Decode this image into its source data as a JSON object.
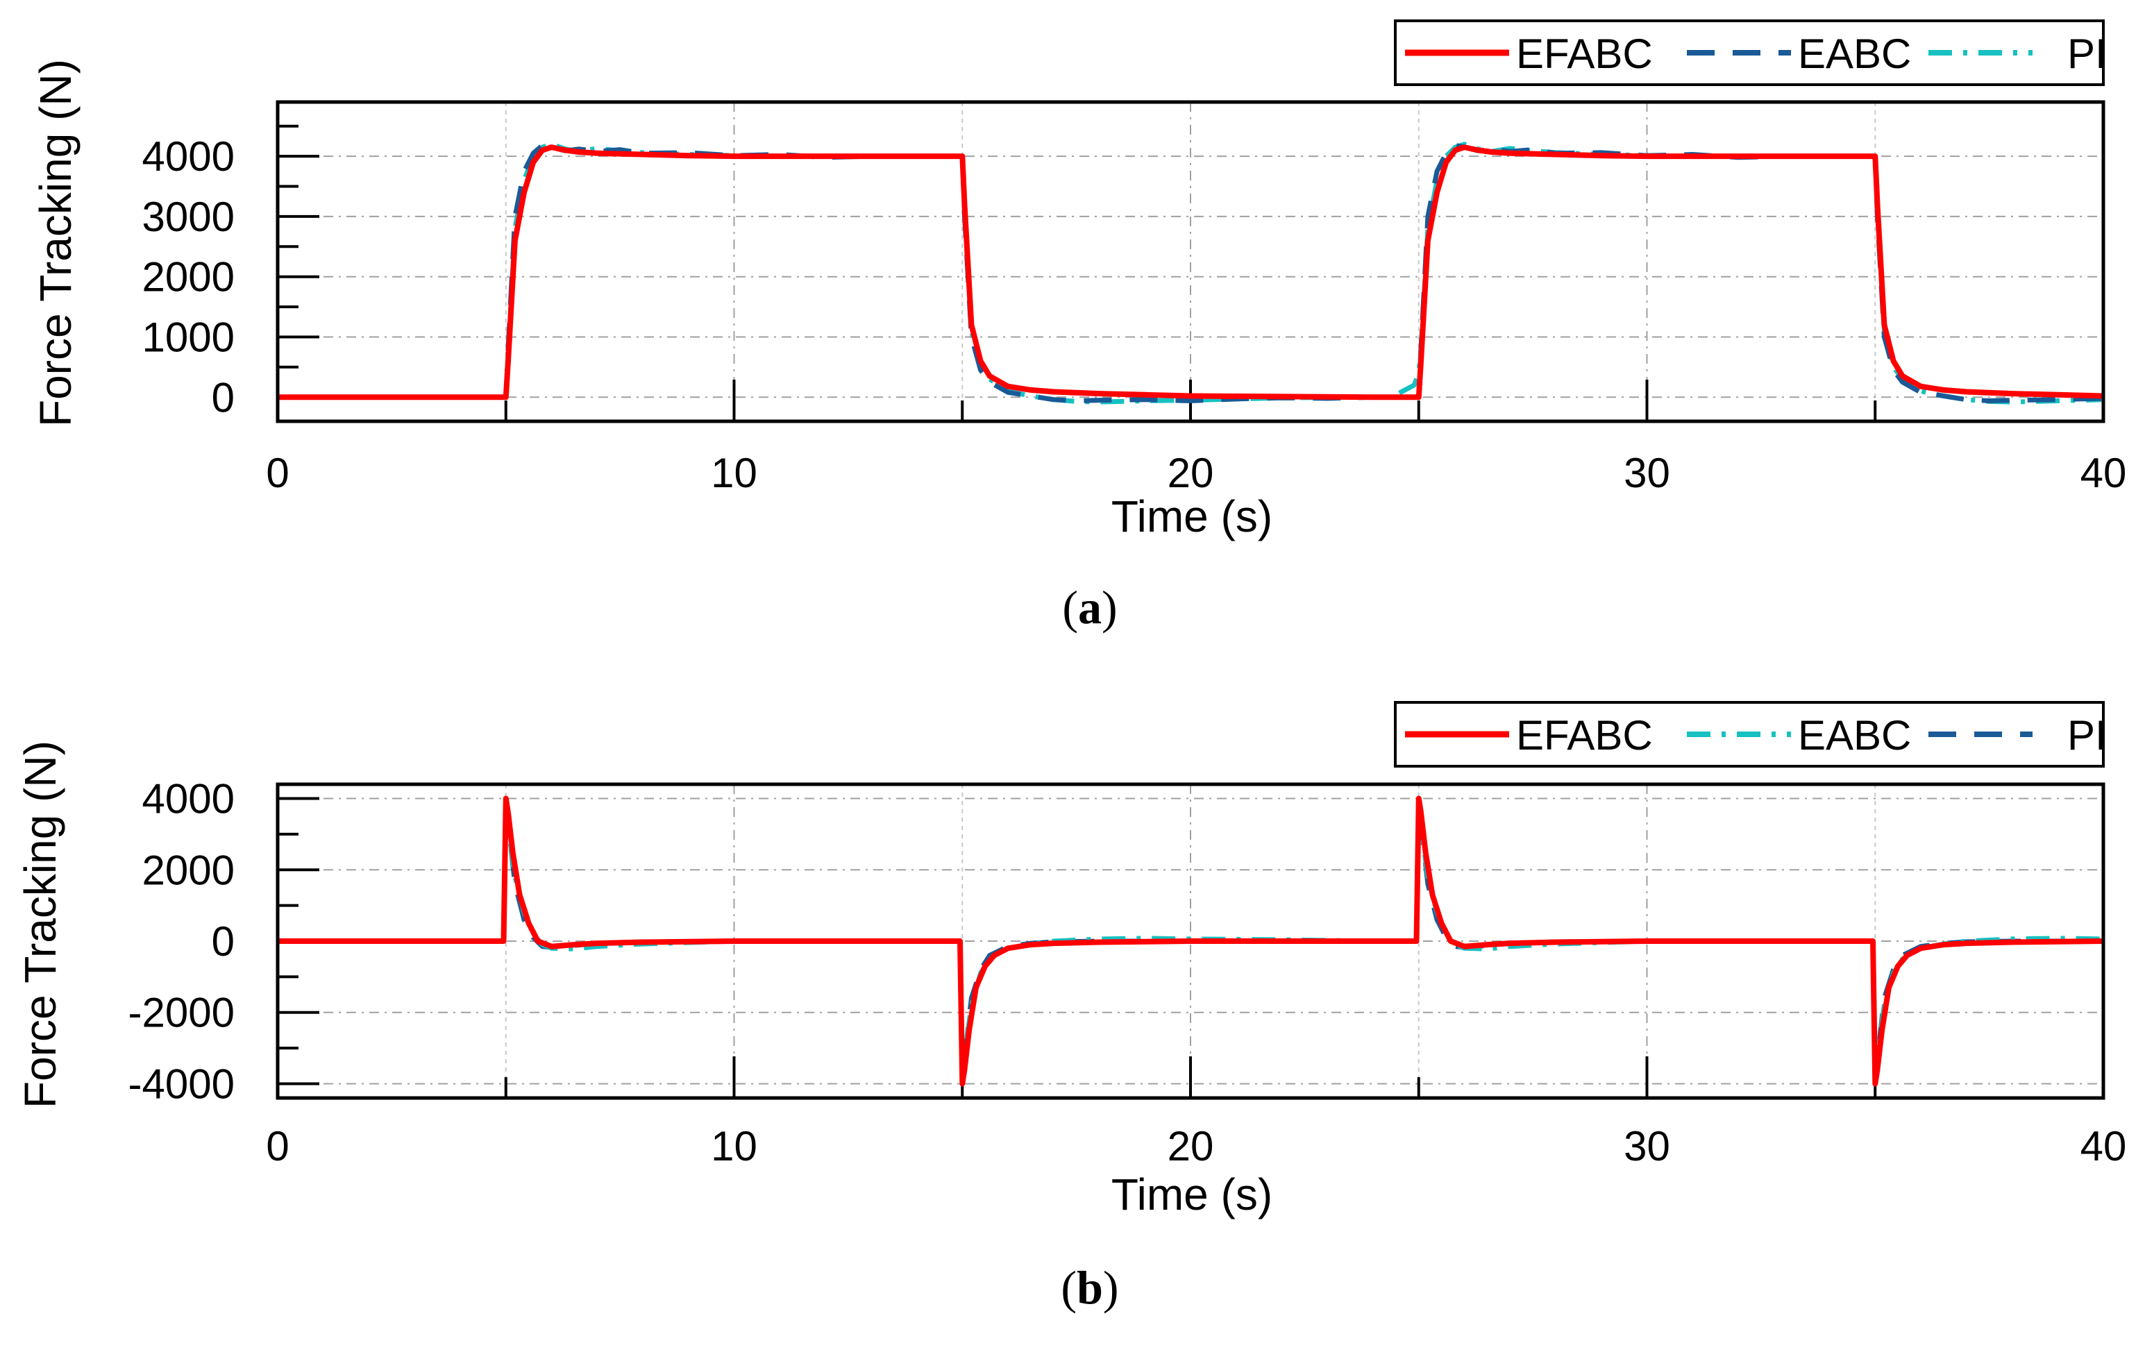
{
  "chart_data": [
    {
      "type": "line",
      "panel_label": "a",
      "xlabel": "Time (s)",
      "ylabel": "Force Tracking (N)",
      "xlim": [
        0,
        40
      ],
      "ylim": [
        -400,
        4900
      ],
      "xticks": [
        0,
        10,
        20,
        30,
        40
      ],
      "yticks": [
        0,
        1000,
        2000,
        3000,
        4000
      ],
      "xtick_labels": [
        "0",
        "10",
        "20",
        "30",
        "40"
      ],
      "ytick_labels": [
        "0",
        "1000",
        "2000",
        "3000",
        "4000"
      ],
      "grid": true,
      "legend_position": "top-right, above plot",
      "series": [
        {
          "name": "EFABC",
          "color": "#ff0000",
          "style": "solid",
          "x": [
            0,
            5,
            5.05,
            5.2,
            5.4,
            5.6,
            5.8,
            6.0,
            6.3,
            6.6,
            7,
            8,
            9,
            10,
            12,
            14,
            14.9,
            15.0,
            15.05,
            15.2,
            15.4,
            15.6,
            16,
            16.5,
            17,
            18,
            19,
            20,
            22,
            24,
            24.9,
            25.0,
            25.05,
            25.2,
            25.4,
            25.6,
            25.8,
            26.0,
            26.3,
            26.6,
            27,
            28,
            29,
            30,
            32,
            34,
            34.9,
            35.0,
            35.05,
            35.2,
            35.4,
            35.6,
            36,
            36.5,
            37,
            38,
            39,
            40
          ],
          "y": [
            0,
            0,
            600,
            2600,
            3400,
            3900,
            4100,
            4150,
            4100,
            4070,
            4050,
            4030,
            4010,
            4000,
            4000,
            4000,
            4000,
            4000,
            3200,
            1200,
            600,
            350,
            180,
            120,
            90,
            60,
            40,
            20,
            10,
            0,
            0,
            0,
            600,
            2600,
            3400,
            3900,
            4100,
            4150,
            4100,
            4070,
            4050,
            4030,
            4010,
            4000,
            4000,
            4000,
            4000,
            4000,
            3200,
            1200,
            600,
            350,
            180,
            120,
            90,
            60,
            40,
            20
          ]
        },
        {
          "name": "EABC",
          "color": "#1a5a96",
          "style": "dashed",
          "x": [
            0,
            5,
            5.05,
            5.2,
            5.4,
            5.6,
            5.8,
            6.0,
            6.3,
            6.6,
            7,
            7.5,
            8,
            9,
            10,
            11,
            12,
            13,
            14,
            14.9,
            15.0,
            15.05,
            15.2,
            15.4,
            15.6,
            16,
            16.5,
            17,
            17.5,
            18,
            19,
            20,
            21,
            22,
            23,
            24,
            24.9,
            25.0,
            25.05,
            25.2,
            25.4,
            25.6,
            25.8,
            26.0,
            26.3,
            26.6,
            27,
            27.5,
            28,
            29,
            30,
            31,
            32,
            33,
            34,
            34.9,
            35.0,
            35.05,
            35.2,
            35.4,
            35.6,
            36,
            36.5,
            37,
            37.5,
            38,
            39,
            40
          ],
          "y": [
            0,
            0,
            800,
            3000,
            3750,
            4050,
            4180,
            4150,
            4090,
            4120,
            4080,
            4110,
            4050,
            4060,
            4010,
            4030,
            3980,
            4000,
            4000,
            4000,
            4000,
            3000,
            1000,
            450,
            250,
            80,
            20,
            -40,
            -60,
            -50,
            -40,
            -60,
            -30,
            -10,
            -20,
            0,
            0,
            0,
            800,
            3000,
            3750,
            4050,
            4180,
            4150,
            4090,
            4120,
            4080,
            4110,
            4050,
            4060,
            4010,
            4030,
            3980,
            4000,
            4000,
            4000,
            4000,
            3000,
            1000,
            450,
            250,
            80,
            20,
            -40,
            -60,
            -50,
            -40,
            -20
          ]
        },
        {
          "name": "PI",
          "color": "#17c1c1",
          "style": "dashdot",
          "x": [
            0,
            5,
            5.05,
            5.2,
            5.4,
            5.6,
            5.8,
            6.0,
            6.3,
            6.6,
            7,
            7.5,
            8,
            9,
            10,
            12,
            14,
            14.9,
            15.0,
            15.05,
            15.2,
            15.4,
            15.6,
            16,
            16.5,
            17,
            17.5,
            18,
            18.5,
            19,
            20,
            21,
            22,
            23,
            24,
            24.4,
            24.9,
            25.0,
            25.05,
            25.2,
            25.4,
            25.6,
            25.8,
            26.0,
            26.3,
            26.6,
            27,
            27.5,
            28,
            29,
            30,
            32,
            34,
            34.9,
            35.0,
            35.05,
            35.2,
            35.4,
            35.6,
            36,
            36.5,
            37,
            37.5,
            38,
            38.5,
            39,
            40
          ],
          "y": [
            0,
            0,
            700,
            2800,
            3600,
            4000,
            4150,
            4200,
            4120,
            4080,
            4130,
            4090,
            4060,
            4030,
            4010,
            4000,
            4000,
            4000,
            4000,
            3100,
            1100,
            500,
            300,
            100,
            20,
            -40,
            -70,
            -80,
            -70,
            -60,
            -50,
            -30,
            -10,
            -5,
            0,
            0,
            200,
            400,
            800,
            2800,
            3600,
            4000,
            4150,
            4200,
            4120,
            4080,
            4130,
            4090,
            4060,
            4030,
            4010,
            4000,
            4000,
            4000,
            4000,
            3100,
            1100,
            500,
            300,
            100,
            20,
            -40,
            -70,
            -80,
            -70,
            -60,
            -40
          ]
        }
      ]
    },
    {
      "type": "line",
      "panel_label": "b",
      "xlabel": "Time (s)",
      "ylabel": "Force Tracking (N)",
      "xlim": [
        0,
        40
      ],
      "ylim": [
        -4400,
        4400
      ],
      "xticks": [
        0,
        10,
        20,
        30,
        40
      ],
      "yticks": [
        -4000,
        -2000,
        0,
        2000,
        4000
      ],
      "xtick_labels": [
        "0",
        "10",
        "20",
        "30",
        "40"
      ],
      "ytick_labels": [
        "-4000",
        "-2000",
        "0",
        "2000",
        "4000"
      ],
      "grid": true,
      "legend_position": "top-right, above plot",
      "series": [
        {
          "name": "EFABC",
          "color": "#ff0000",
          "style": "solid",
          "x": [
            0,
            4.95,
            5.0,
            5.05,
            5.15,
            5.3,
            5.5,
            5.7,
            6.0,
            6.5,
            7,
            8,
            10,
            14,
            14.95,
            15.0,
            15.05,
            15.15,
            15.3,
            15.5,
            15.7,
            16.0,
            16.5,
            17,
            18,
            20,
            24,
            24.95,
            25.0,
            25.05,
            25.15,
            25.3,
            25.5,
            25.7,
            26.0,
            26.5,
            27,
            28,
            30,
            34,
            34.95,
            35.0,
            35.05,
            35.15,
            35.3,
            35.5,
            35.7,
            36.0,
            36.5,
            37,
            38,
            40
          ],
          "y": [
            0,
            0,
            4000,
            3600,
            2500,
            1300,
            500,
            0,
            -150,
            -100,
            -60,
            -30,
            0,
            0,
            0,
            -4000,
            -3600,
            -2500,
            -1300,
            -700,
            -400,
            -200,
            -100,
            -60,
            -30,
            0,
            0,
            0,
            4000,
            3600,
            2500,
            1300,
            500,
            0,
            -150,
            -100,
            -60,
            -30,
            0,
            0,
            0,
            -4000,
            -3600,
            -2500,
            -1300,
            -700,
            -400,
            -200,
            -100,
            -60,
            -30,
            0
          ]
        },
        {
          "name": "EABC",
          "color": "#17c1c1",
          "style": "dashdot",
          "x": [
            0,
            4.95,
            5.0,
            5.05,
            5.2,
            5.4,
            5.6,
            5.8,
            6.0,
            6.5,
            7,
            8,
            10,
            14,
            14.95,
            15.0,
            15.05,
            15.2,
            15.4,
            15.6,
            16.0,
            16.5,
            17,
            18,
            19,
            20,
            22,
            24,
            24.95,
            25.0,
            25.05,
            25.2,
            25.4,
            25.6,
            25.8,
            26.0,
            26.5,
            27,
            28,
            30,
            34,
            34.95,
            35.0,
            35.05,
            35.2,
            35.4,
            35.6,
            36.0,
            36.5,
            37,
            38,
            39,
            40
          ],
          "y": [
            0,
            0,
            3800,
            3200,
            1800,
            800,
            200,
            -100,
            -200,
            -220,
            -150,
            -80,
            0,
            0,
            0,
            -3800,
            -3200,
            -1800,
            -900,
            -500,
            -200,
            -80,
            0,
            60,
            80,
            60,
            40,
            0,
            0,
            3800,
            3200,
            1800,
            800,
            200,
            -100,
            -200,
            -220,
            -150,
            -80,
            0,
            0,
            0,
            -3800,
            -3200,
            -1800,
            -900,
            -500,
            -200,
            -80,
            0,
            60,
            80,
            60
          ]
        },
        {
          "name": "PI",
          "color": "#1a5a96",
          "style": "dashed",
          "x": [
            0,
            4.95,
            5.0,
            5.05,
            5.2,
            5.4,
            5.6,
            5.8,
            6.0,
            6.5,
            7,
            8,
            10,
            14,
            14.95,
            15.0,
            15.05,
            15.2,
            15.4,
            15.6,
            16.0,
            16.5,
            17,
            18,
            20,
            24,
            24.95,
            25.0,
            25.05,
            25.2,
            25.4,
            25.6,
            25.8,
            26.0,
            26.5,
            27,
            28,
            30,
            34,
            34.95,
            35.0,
            35.05,
            35.2,
            35.4,
            35.6,
            36.0,
            36.5,
            37,
            38,
            40
          ],
          "y": [
            0,
            0,
            3900,
            3300,
            1600,
            600,
            100,
            -150,
            -180,
            -120,
            -60,
            -20,
            0,
            0,
            0,
            -3900,
            -3300,
            -1600,
            -800,
            -400,
            -150,
            -60,
            -20,
            0,
            0,
            0,
            0,
            3900,
            3300,
            1600,
            600,
            100,
            -150,
            -180,
            -120,
            -60,
            -20,
            0,
            0,
            0,
            -3900,
            -3300,
            -1600,
            -800,
            -400,
            -150,
            -60,
            -20,
            0,
            0
          ]
        }
      ]
    }
  ]
}
